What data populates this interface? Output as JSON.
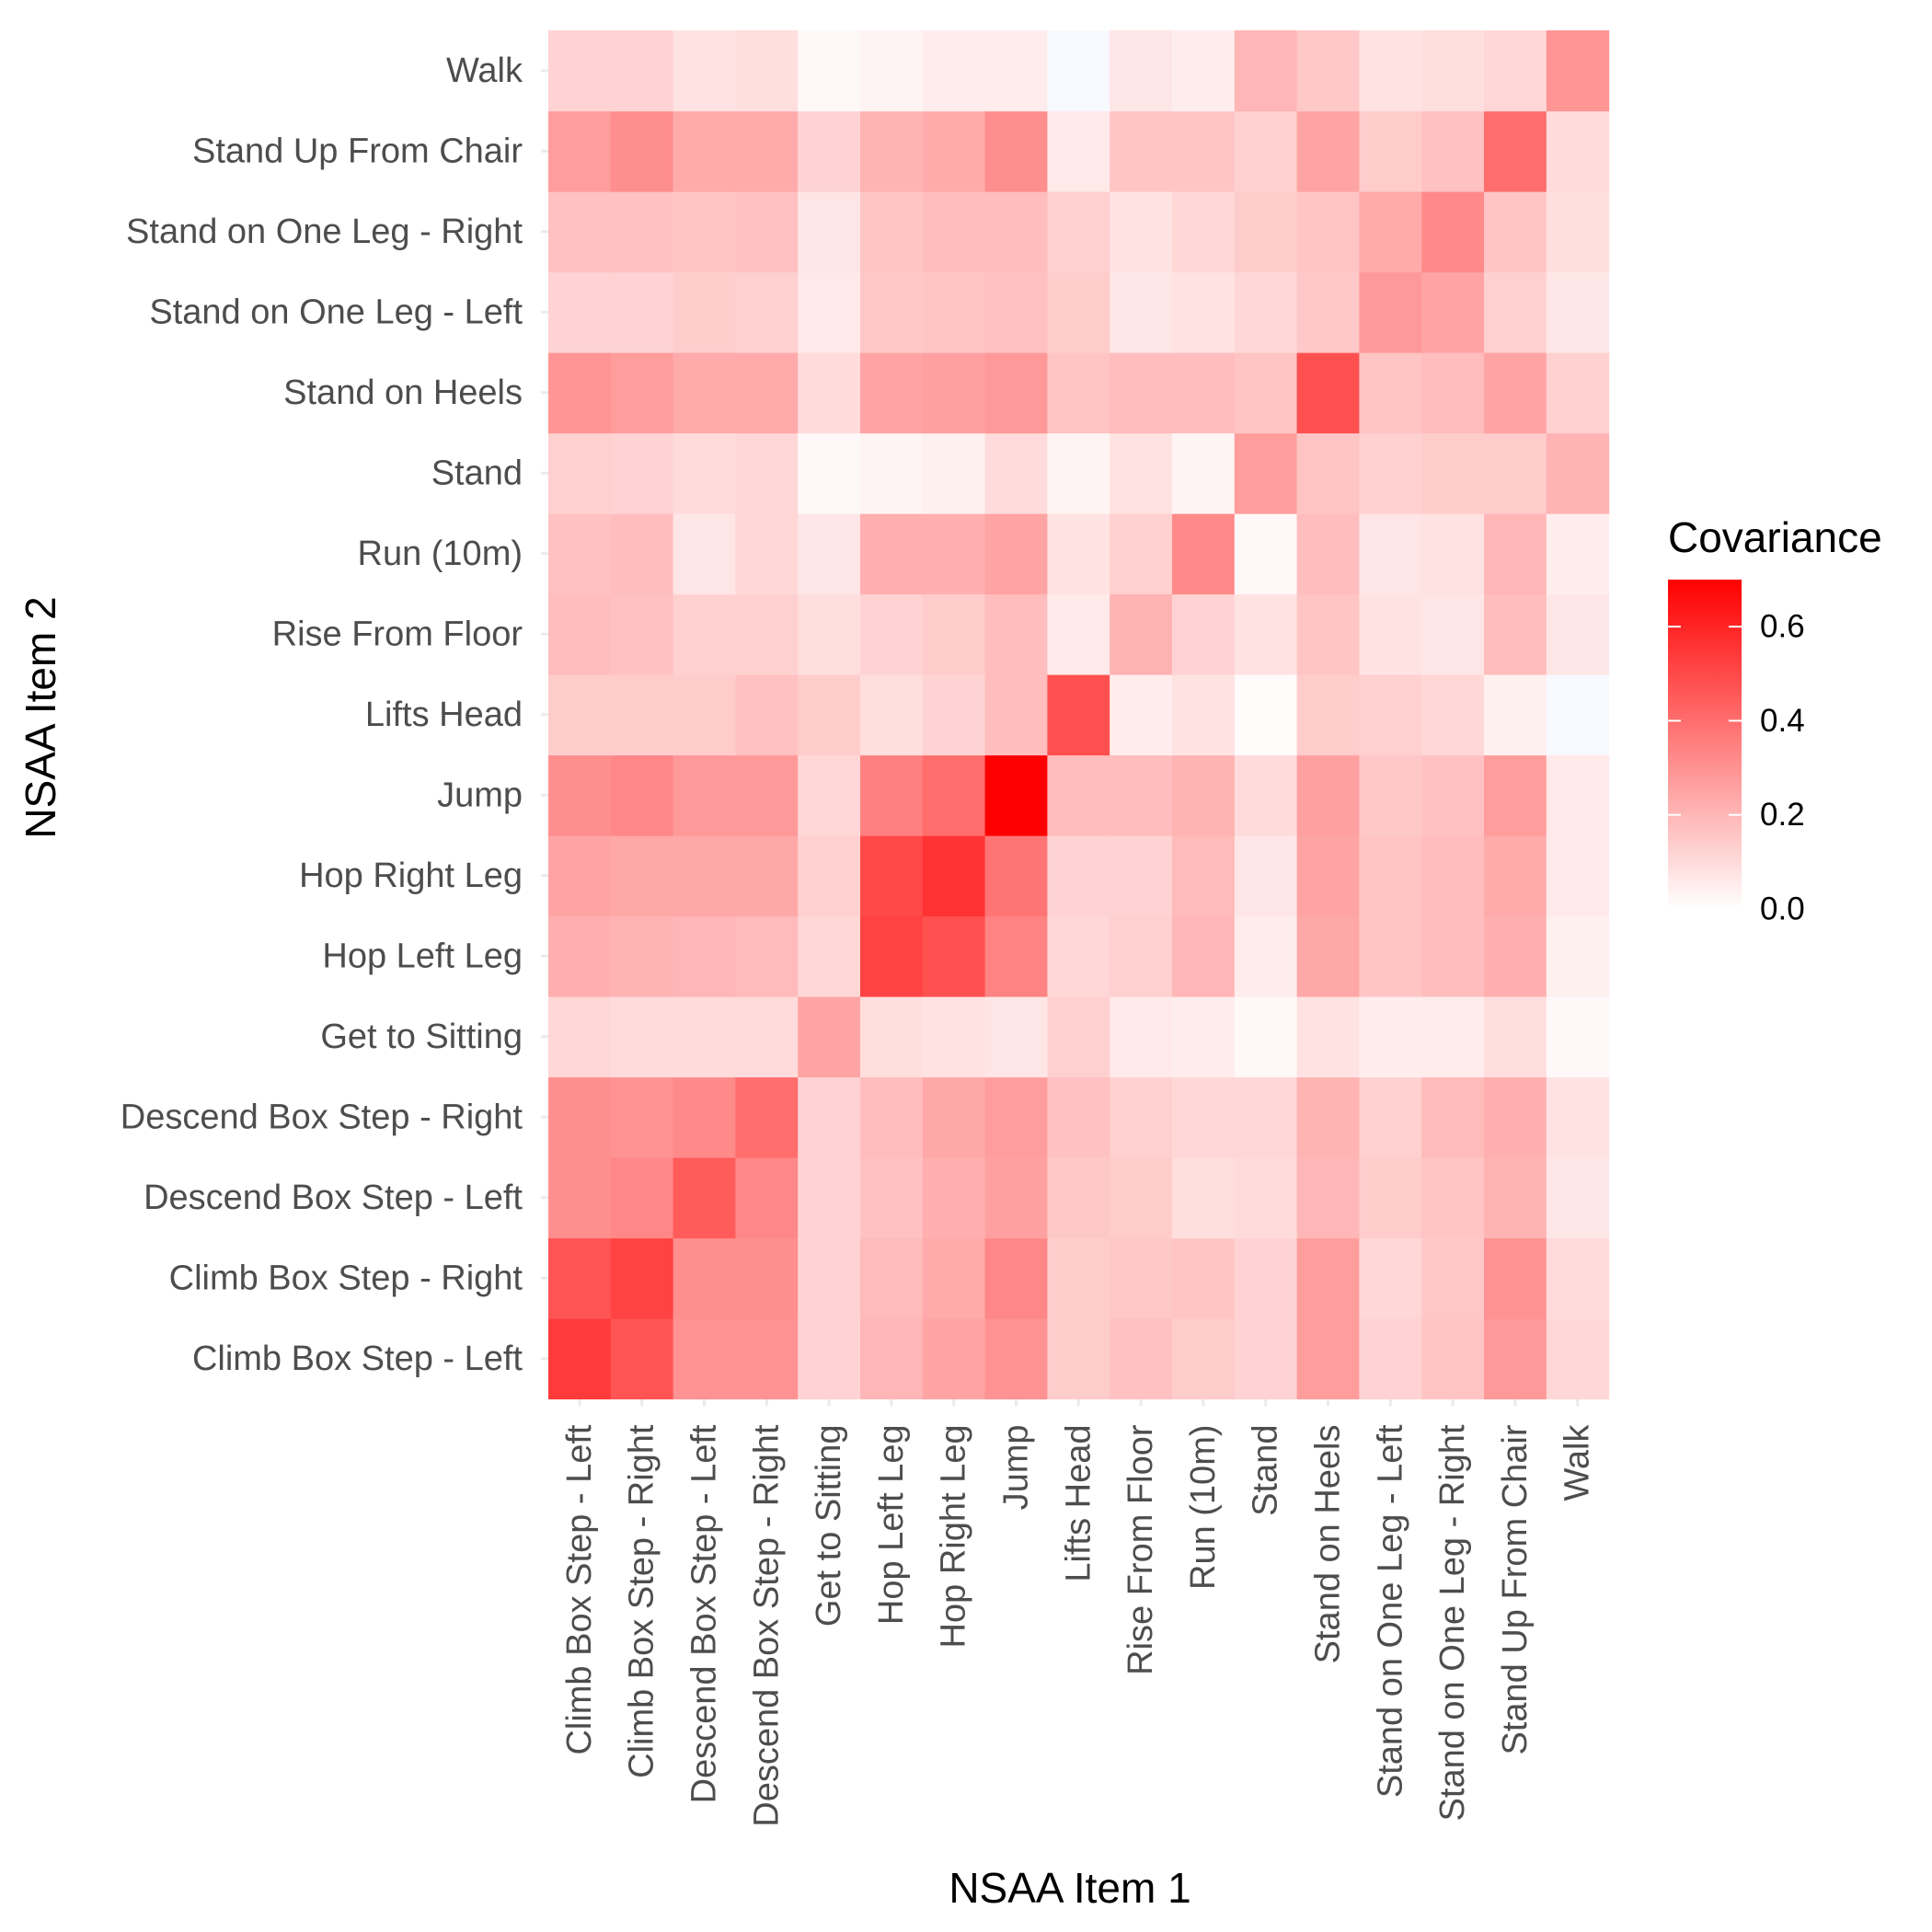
{
  "colors": {
    "low": "#ffffff",
    "high": "#ff0000",
    "negative": "#f8f8ff",
    "grid": "#ebebeb",
    "tick_mark": "#ebebeb"
  },
  "chart_data": {
    "type": "heatmap",
    "xlabel": "NSAA Item 1",
    "ylabel": "NSAA Item 2",
    "legend": {
      "title": "Covariance",
      "position": "right",
      "ticks": [
        "0.0",
        "0.2",
        "0.4",
        "0.6"
      ],
      "range": [
        0,
        0.7
      ]
    },
    "grid": true,
    "x": [
      "Climb Box Step - Left",
      "Climb Box Step - Right",
      "Descend Box Step - Left",
      "Descend Box Step - Right",
      "Get to Sitting",
      "Hop Left Leg",
      "Hop Right Leg",
      "Jump",
      "Lifts Head",
      "Rise From Floor",
      "Run (10m)",
      "Stand",
      "Stand on Heels",
      "Stand on One Leg - Left",
      "Stand on One Leg - Right",
      "Stand Up From Chair",
      "Walk"
    ],
    "y": [
      "Climb Box Step - Left",
      "Climb Box Step - Right",
      "Descend Box Step - Left",
      "Descend Box Step - Right",
      "Get to Sitting",
      "Hop Left Leg",
      "Hop Right Leg",
      "Jump",
      "Lifts Head",
      "Rise From Floor",
      "Run (10m)",
      "Stand",
      "Stand on Heels",
      "Stand on One Leg - Left",
      "Stand on One Leg - Right",
      "Stand Up From Chair",
      "Walk"
    ],
    "values": [
      [
        0.54,
        0.47,
        0.3,
        0.3,
        0.12,
        0.2,
        0.25,
        0.3,
        0.14,
        0.17,
        0.14,
        0.12,
        0.27,
        0.12,
        0.16,
        0.28,
        0.11
      ],
      [
        0.47,
        0.52,
        0.31,
        0.31,
        0.12,
        0.19,
        0.23,
        0.33,
        0.14,
        0.15,
        0.16,
        0.12,
        0.27,
        0.11,
        0.15,
        0.3,
        0.1
      ],
      [
        0.31,
        0.33,
        0.45,
        0.33,
        0.12,
        0.17,
        0.22,
        0.26,
        0.15,
        0.14,
        0.09,
        0.1,
        0.2,
        0.14,
        0.16,
        0.21,
        0.07
      ],
      [
        0.31,
        0.3,
        0.32,
        0.4,
        0.12,
        0.18,
        0.24,
        0.27,
        0.17,
        0.13,
        0.11,
        0.11,
        0.21,
        0.13,
        0.19,
        0.22,
        0.08
      ],
      [
        0.11,
        0.1,
        0.1,
        0.1,
        0.25,
        0.09,
        0.08,
        0.07,
        0.13,
        0.06,
        0.05,
        0.02,
        0.08,
        0.05,
        0.05,
        0.09,
        0.02
      ],
      [
        0.22,
        0.21,
        0.2,
        0.19,
        0.11,
        0.52,
        0.48,
        0.34,
        0.11,
        0.13,
        0.2,
        0.05,
        0.24,
        0.16,
        0.18,
        0.22,
        0.04
      ],
      [
        0.25,
        0.24,
        0.24,
        0.24,
        0.13,
        0.5,
        0.56,
        0.38,
        0.12,
        0.12,
        0.19,
        0.07,
        0.25,
        0.16,
        0.18,
        0.23,
        0.06
      ],
      [
        0.31,
        0.33,
        0.28,
        0.28,
        0.11,
        0.35,
        0.4,
        0.7,
        0.18,
        0.18,
        0.21,
        0.1,
        0.26,
        0.15,
        0.17,
        0.27,
        0.06
      ],
      [
        0.14,
        0.14,
        0.14,
        0.17,
        0.14,
        0.09,
        0.12,
        0.18,
        0.48,
        0.05,
        0.08,
        0.01,
        0.14,
        0.13,
        0.11,
        0.04,
        -0.02
      ],
      [
        0.18,
        0.17,
        0.13,
        0.13,
        0.09,
        0.12,
        0.14,
        0.18,
        0.06,
        0.21,
        0.12,
        0.08,
        0.16,
        0.08,
        0.07,
        0.18,
        0.07
      ],
      [
        0.17,
        0.18,
        0.07,
        0.11,
        0.07,
        0.22,
        0.22,
        0.25,
        0.08,
        0.13,
        0.32,
        0.02,
        0.18,
        0.07,
        0.08,
        0.2,
        0.05
      ],
      [
        0.13,
        0.12,
        0.1,
        0.11,
        0.02,
        0.03,
        0.04,
        0.1,
        0.03,
        0.08,
        0.03,
        0.27,
        0.16,
        0.13,
        0.14,
        0.14,
        0.21
      ],
      [
        0.29,
        0.27,
        0.23,
        0.23,
        0.1,
        0.25,
        0.26,
        0.28,
        0.16,
        0.18,
        0.18,
        0.16,
        0.48,
        0.16,
        0.18,
        0.25,
        0.13
      ],
      [
        0.12,
        0.12,
        0.14,
        0.13,
        0.06,
        0.15,
        0.16,
        0.17,
        0.14,
        0.07,
        0.08,
        0.11,
        0.15,
        0.28,
        0.25,
        0.13,
        0.07
      ],
      [
        0.17,
        0.17,
        0.16,
        0.17,
        0.07,
        0.16,
        0.18,
        0.18,
        0.13,
        0.08,
        0.11,
        0.14,
        0.16,
        0.23,
        0.32,
        0.16,
        0.09
      ],
      [
        0.27,
        0.31,
        0.23,
        0.23,
        0.12,
        0.21,
        0.23,
        0.31,
        0.06,
        0.16,
        0.16,
        0.13,
        0.25,
        0.14,
        0.17,
        0.4,
        0.1
      ],
      [
        0.12,
        0.12,
        0.08,
        0.09,
        0.02,
        0.03,
        0.05,
        0.05,
        -0.02,
        0.07,
        0.05,
        0.2,
        0.15,
        0.08,
        0.09,
        0.11,
        0.29
      ]
    ]
  }
}
